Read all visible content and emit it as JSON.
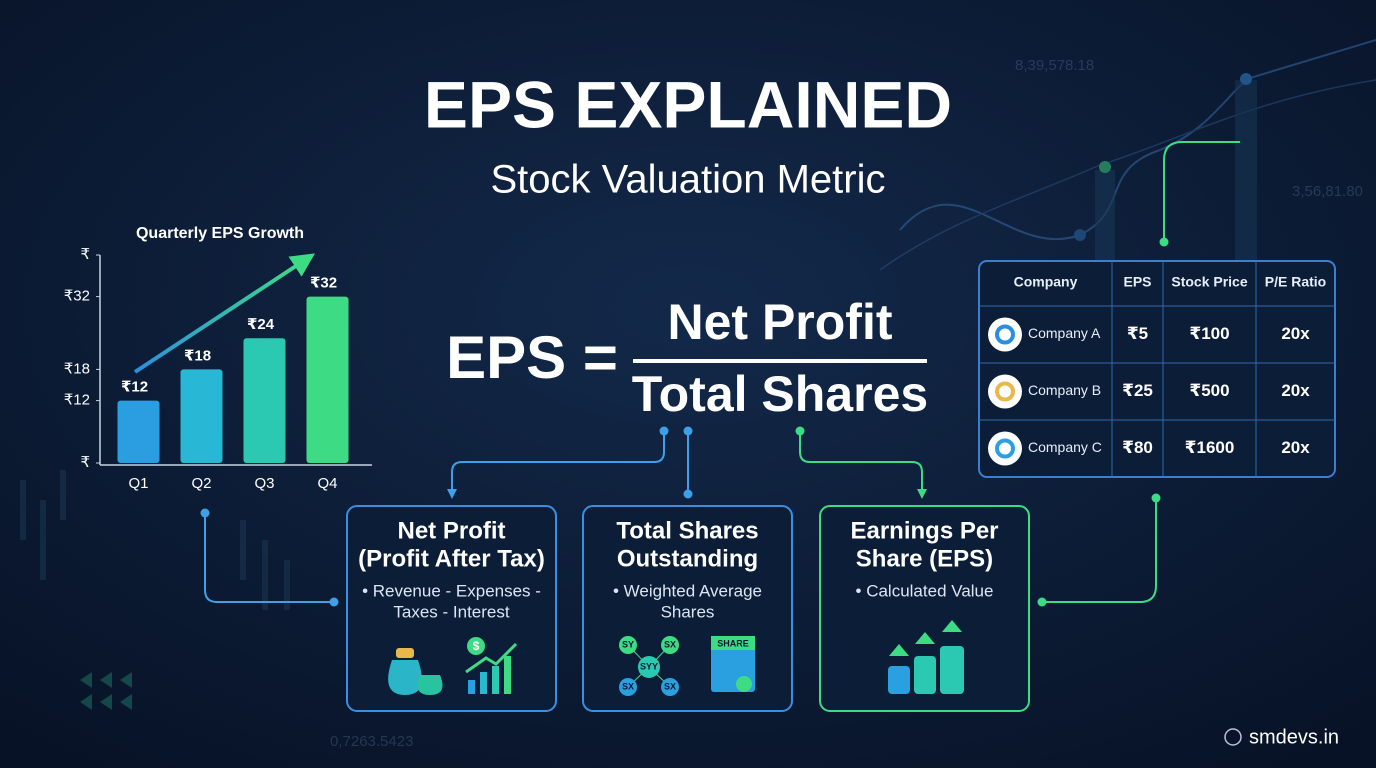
{
  "header": {
    "title": "EPS EXPLAINED",
    "subtitle": "Stock Valuation Metric"
  },
  "background": {
    "numbers": [
      "8,39,578.18",
      "3,56,81.80",
      "0,7263.5423"
    ]
  },
  "chart_data": {
    "type": "bar",
    "title": "Quarterly EPS Growth",
    "categories": [
      "Q1",
      "Q2",
      "Q3",
      "Q4"
    ],
    "values": [
      12,
      18,
      24,
      32
    ],
    "value_labels": [
      "₹12",
      "₹18",
      "₹24",
      "₹32"
    ],
    "colors": [
      "#2a9ee0",
      "#28b8d6",
      "#2cc9b2",
      "#3ddc84"
    ],
    "ylim": [
      0,
      40
    ],
    "yticks": [
      {
        "value": 0,
        "label": "₹"
      },
      {
        "value": 12,
        "label": "₹12"
      },
      {
        "value": 18,
        "label": "₹18"
      },
      {
        "value": 32,
        "label": "₹32"
      },
      {
        "value": 40,
        "label": "₹"
      }
    ]
  },
  "formula": {
    "lhs": "EPS =",
    "numerator": "Net Profit",
    "denominator": "Total Shares"
  },
  "table": {
    "columns": [
      "Company",
      "EPS",
      "Stock Price",
      "P/E Ratio"
    ],
    "rows": [
      [
        "Company A",
        "₹5",
        "₹100",
        "20x"
      ],
      [
        "Company B",
        "₹25",
        "₹500",
        "20x"
      ],
      [
        "Company C",
        "₹80",
        "₹1600",
        "20x"
      ]
    ]
  },
  "boxes": [
    {
      "title": [
        "Net Profit",
        "(Profit After Tax)"
      ],
      "items": [
        "• Revenue - Expenses -",
        "Taxes - Interest"
      ]
    },
    {
      "title": [
        "Total Shares",
        "Outstanding"
      ],
      "items": [
        "• Weighted Average",
        "Shares"
      ]
    },
    {
      "title": [
        "Earnings Per",
        "Share (EPS)"
      ],
      "items": [
        "• Calculated Value"
      ]
    }
  ],
  "icons": {
    "share_nodes": [
      "SY",
      "SX",
      "SYY",
      "SX",
      "SX"
    ],
    "certificate": "SHARE"
  },
  "watermark": "smdevs.in"
}
